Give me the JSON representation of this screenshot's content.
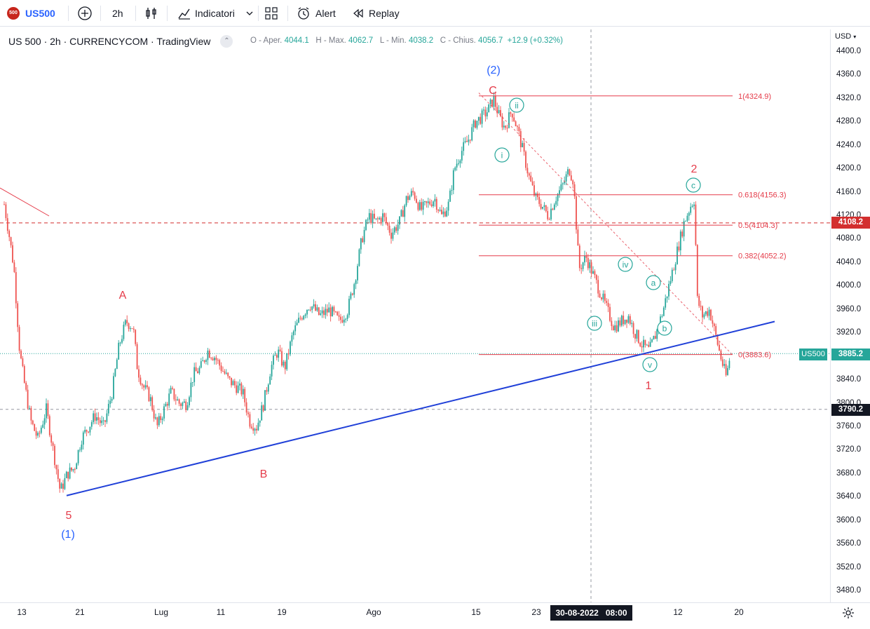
{
  "toolbar": {
    "symbol_badge": "500",
    "symbol": "US500",
    "interval": "2h",
    "indicators_label": "Indicatori",
    "alert_label": "Alert",
    "replay_label": "Replay"
  },
  "legend": {
    "title": "US 500 · 2h · CURRENCYCOM · TradingView"
  },
  "ohlc": {
    "open_label": "O - Aper.",
    "open": "4044.1",
    "high_label": "H - Max.",
    "high": "4062.7",
    "low_label": "L - Min.",
    "low": "4038.2",
    "close_label": "C - Chius.",
    "close": "4056.7",
    "change": "+12.9 (+0.32%)"
  },
  "price_axis": {
    "currency": "USD",
    "ticks": [
      "4400.0",
      "4360.0",
      "4320.0",
      "4280.0",
      "4240.0",
      "4200.0",
      "4160.0",
      "4120.0",
      "4080.0",
      "4040.0",
      "4000.0",
      "3960.0",
      "3920.0",
      "3880.0",
      "3840.0",
      "3800.0",
      "3760.0",
      "3720.0",
      "3680.0",
      "3640.0",
      "3600.0",
      "3560.0",
      "3520.0",
      "3480.0"
    ],
    "tick_values": [
      4400,
      4360,
      4320,
      4280,
      4240,
      4200,
      4160,
      4120,
      4080,
      4040,
      4000,
      3960,
      3920,
      3880,
      3840,
      3800,
      3760,
      3720,
      3680,
      3640,
      3600,
      3560,
      3520,
      3480
    ],
    "hline_label": "4108.2",
    "symbol_tag": "US500",
    "last_price": "3885.2",
    "crosshair_price": "3790.2"
  },
  "time_axis": {
    "labels": [
      "13",
      "21",
      "Lug",
      "11",
      "19",
      "Ago",
      "15",
      "23",
      "12",
      "20"
    ],
    "crosshair_label": "30-08-2022   08:00"
  },
  "fib": [
    {
      "label": "1(4324.9)",
      "level": 4324.9
    },
    {
      "label": "0.618(4156.3)",
      "level": 4156.3
    },
    {
      "label": "0.5(4104.3)",
      "level": 4104.3
    },
    {
      "label": "0.382(4052.2)",
      "level": 4052.2
    },
    {
      "label": "0(3883.6)",
      "level": 3883.6
    }
  ],
  "wave_labels": {
    "five": "5",
    "p1": "(1)",
    "p2": "(2)",
    "A": "A",
    "B": "B",
    "C": "C",
    "one": "1",
    "two": "2",
    "i": "i",
    "ii": "ii",
    "iii": "iii",
    "iv": "iv",
    "v": "v",
    "a": "a",
    "b": "b",
    "c": "c"
  },
  "colors": {
    "up": "#26a69a",
    "down": "#ef5350",
    "fib": "#e53c4a",
    "trend": "#2040d8",
    "wave_blue": "#2962ff",
    "wave_red": "#e53c4a",
    "hline": "#d32f2f",
    "last": "#26a69a",
    "crosshair_tag": "#131722"
  },
  "chart_data": {
    "type": "candlestick",
    "title": "US 500 · 2h · CURRENCYCOM",
    "ylim": [
      3450,
      4420
    ],
    "x_labels": [
      "13",
      "21",
      "Lug",
      "11",
      "19",
      "Ago",
      "15",
      "23",
      "12",
      "20"
    ],
    "path": [
      [
        6,
        4140
      ],
      [
        14,
        4080
      ],
      [
        20,
        4030
      ],
      [
        28,
        3890
      ],
      [
        34,
        3840
      ],
      [
        44,
        3770
      ],
      [
        54,
        3740
      ],
      [
        66,
        3790
      ],
      [
        76,
        3720
      ],
      [
        86,
        3650
      ],
      [
        96,
        3680
      ],
      [
        106,
        3690
      ],
      [
        116,
        3740
      ],
      [
        126,
        3760
      ],
      [
        136,
        3780
      ],
      [
        148,
        3760
      ],
      [
        160,
        3820
      ],
      [
        170,
        3900
      ],
      [
        180,
        3940
      ],
      [
        190,
        3930
      ],
      [
        196,
        3860
      ],
      [
        204,
        3830
      ],
      [
        214,
        3810
      ],
      [
        224,
        3760
      ],
      [
        234,
        3790
      ],
      [
        244,
        3820
      ],
      [
        256,
        3800
      ],
      [
        266,
        3800
      ],
      [
        276,
        3850
      ],
      [
        286,
        3860
      ],
      [
        296,
        3890
      ],
      [
        306,
        3880
      ],
      [
        316,
        3860
      ],
      [
        326,
        3840
      ],
      [
        336,
        3830
      ],
      [
        346,
        3820
      ],
      [
        356,
        3770
      ],
      [
        366,
        3760
      ],
      [
        376,
        3800
      ],
      [
        386,
        3860
      ],
      [
        396,
        3890
      ],
      [
        406,
        3860
      ],
      [
        418,
        3920
      ],
      [
        430,
        3950
      ],
      [
        442,
        3970
      ],
      [
        456,
        3950
      ],
      [
        470,
        3960
      ],
      [
        484,
        3940
      ],
      [
        496,
        3960
      ],
      [
        506,
        4010
      ],
      [
        516,
        4080
      ],
      [
        526,
        4120
      ],
      [
        536,
        4110
      ],
      [
        546,
        4120
      ],
      [
        558,
        4090
      ],
      [
        570,
        4110
      ],
      [
        580,
        4150
      ],
      [
        590,
        4160
      ],
      [
        600,
        4130
      ],
      [
        610,
        4140
      ],
      [
        620,
        4150
      ],
      [
        630,
        4120
      ],
      [
        640,
        4140
      ],
      [
        648,
        4200
      ],
      [
        658,
        4230
      ],
      [
        668,
        4250
      ],
      [
        678,
        4280
      ],
      [
        688,
        4290
      ],
      [
        696,
        4300
      ],
      [
        704,
        4320
      ],
      [
        712,
        4290
      ],
      [
        720,
        4270
      ],
      [
        730,
        4300
      ],
      [
        740,
        4260
      ],
      [
        748,
        4220
      ],
      [
        756,
        4180
      ],
      [
        764,
        4150
      ],
      [
        772,
        4140
      ],
      [
        782,
        4120
      ],
      [
        792,
        4150
      ],
      [
        802,
        4170
      ],
      [
        812,
        4200
      ],
      [
        818,
        4180
      ],
      [
        826,
        4030
      ],
      [
        836,
        4050
      ],
      [
        846,
        4020
      ],
      [
        856,
        3990
      ],
      [
        866,
        3960
      ],
      [
        876,
        3930
      ],
      [
        886,
        3940
      ],
      [
        896,
        3950
      ],
      [
        906,
        3920
      ],
      [
        916,
        3900
      ],
      [
        926,
        3890
      ],
      [
        936,
        3920
      ],
      [
        946,
        3960
      ],
      [
        956,
        4010
      ],
      [
        966,
        4060
      ],
      [
        976,
        4110
      ],
      [
        986,
        4140
      ],
      [
        991,
        4150
      ],
      [
        994,
        3980
      ],
      [
        1002,
        3950
      ],
      [
        1012,
        3960
      ],
      [
        1020,
        3920
      ],
      [
        1030,
        3870
      ],
      [
        1036,
        3845
      ],
      [
        1042,
        3885
      ]
    ]
  }
}
